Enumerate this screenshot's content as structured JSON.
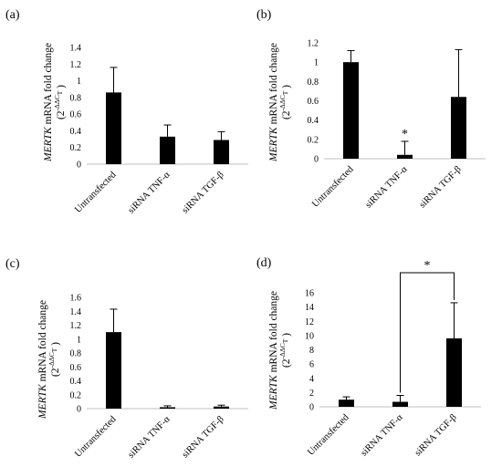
{
  "chart_data": [
    {
      "type": "bar",
      "panel_label": "(a)",
      "ylabel_italic": "MERTK",
      "ylabel_rest": " mRNA fold change",
      "ylabel_line2_open": "(2",
      "ylabel_superscript": "-ΔΔC",
      "ylabel_sub": "T",
      "ylabel_line2_close": ")",
      "categories": [
        "Untransfected",
        "siRNA TNF-α",
        "siRNA TGF-β"
      ],
      "values": [
        0.86,
        0.33,
        0.29
      ],
      "errors": [
        0.3,
        0.14,
        0.1
      ],
      "ylim": [
        0,
        1.4
      ],
      "yticks": [
        "0",
        "0.2",
        "0.4",
        "0.6",
        "0.8",
        "1",
        "1.2",
        "1.4"
      ],
      "grid": false
    },
    {
      "type": "bar",
      "panel_label": "(b)",
      "ylabel_italic": "MERTK",
      "ylabel_rest": " mRNA fold change",
      "ylabel_line2_open": "(2",
      "ylabel_superscript": "-ΔΔC",
      "ylabel_sub": "T",
      "ylabel_line2_close": ")",
      "categories": [
        "Untransfected",
        "siRNA TNF-α",
        "siRNA TGF-β"
      ],
      "values": [
        1.0,
        0.04,
        0.64
      ],
      "errors": [
        0.12,
        0.14,
        0.49
      ],
      "ylim": [
        0,
        1.2
      ],
      "yticks": [
        "0",
        "0.2",
        "0.4",
        "0.6",
        "0.8",
        "1",
        "1.2"
      ],
      "annotation_star": "*",
      "grid": false
    },
    {
      "type": "bar",
      "panel_label": "(c)",
      "ylabel_italic": "MERTK",
      "ylabel_rest": " mRNA fold change",
      "ylabel_line2_open": "(2",
      "ylabel_superscript": "-ΔΔC",
      "ylabel_sub": "T",
      "ylabel_line2_close": ")",
      "categories": [
        "Untransfected",
        "siRNA TNF-α",
        "siRNA TGF-β"
      ],
      "values": [
        1.1,
        0.02,
        0.03
      ],
      "errors": [
        0.33,
        0.02,
        0.02
      ],
      "ylim": [
        0,
        1.6
      ],
      "yticks": [
        "0",
        "0.2",
        "0.4",
        "0.6",
        "0.8",
        "1",
        "1.2",
        "1.4",
        "1.6"
      ],
      "grid": false
    },
    {
      "type": "bar",
      "panel_label": "(d)",
      "ylabel_italic": "MERTK",
      "ylabel_rest": " mRNA fold change",
      "ylabel_line2_open": "(2",
      "ylabel_superscript": "-ΔΔC",
      "ylabel_sub": "T",
      "ylabel_line2_close": ")",
      "categories": [
        "Untransfected",
        "siRNA TNF-α",
        "siRNA TGF-β"
      ],
      "values": [
        1.0,
        0.7,
        9.6
      ],
      "errors": [
        0.4,
        0.9,
        5.0
      ],
      "ylim": [
        0,
        16
      ],
      "yticks": [
        "0",
        "2",
        "4",
        "6",
        "8",
        "10",
        "12",
        "14",
        "16"
      ],
      "significance_star": "*",
      "grid": false
    }
  ]
}
